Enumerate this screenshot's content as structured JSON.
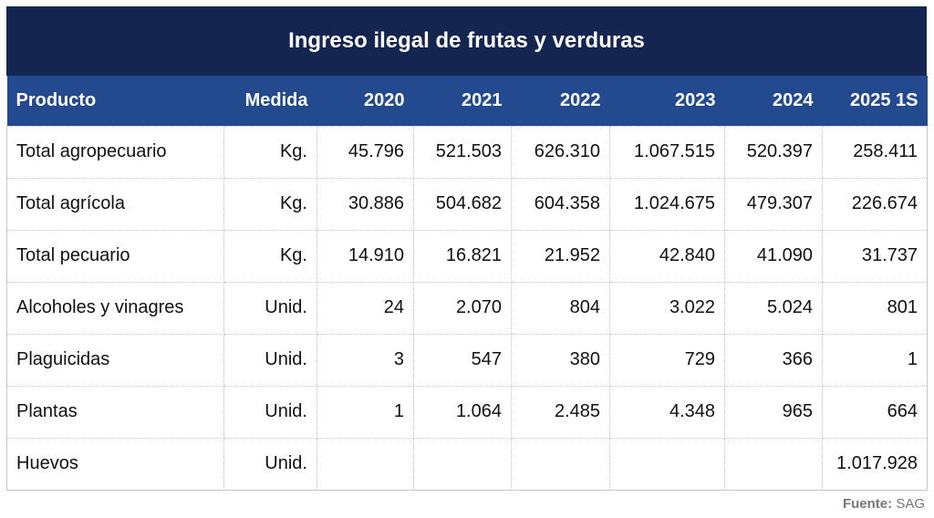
{
  "title": "Ingreso ilegal de frutas y verduras",
  "columns": [
    "Producto",
    "Medida",
    "2020",
    "2021",
    "2022",
    "2023",
    "2024",
    "2025 1S"
  ],
  "rows": [
    [
      "Total agropecuario",
      "Kg.",
      "45.796",
      "521.503",
      "626.310",
      "1.067.515",
      "520.397",
      "258.411"
    ],
    [
      "Total agrícola",
      "Kg.",
      "30.886",
      "504.682",
      "604.358",
      "1.024.675",
      "479.307",
      "226.674"
    ],
    [
      "Total pecuario",
      "Kg.",
      "14.910",
      "16.821",
      "21.952",
      "42.840",
      "41.090",
      "31.737"
    ],
    [
      "Alcoholes y vinagres",
      "Unid.",
      "24",
      "2.070",
      "804",
      "3.022",
      "5.024",
      "801"
    ],
    [
      "Plaguicidas",
      "Unid.",
      "3",
      "547",
      "380",
      "729",
      "366",
      "1"
    ],
    [
      "Plantas",
      "Unid.",
      "1",
      "1.064",
      "2.485",
      "4.348",
      "965",
      "664"
    ],
    [
      "Huevos",
      "Unid.",
      "",
      "",
      "",
      "",
      "",
      "1.017.928"
    ]
  ],
  "source": {
    "label": "Fuente:",
    "value": "SAG"
  },
  "colors": {
    "title_bg": "#14264f",
    "header_bg": "#23498f"
  }
}
